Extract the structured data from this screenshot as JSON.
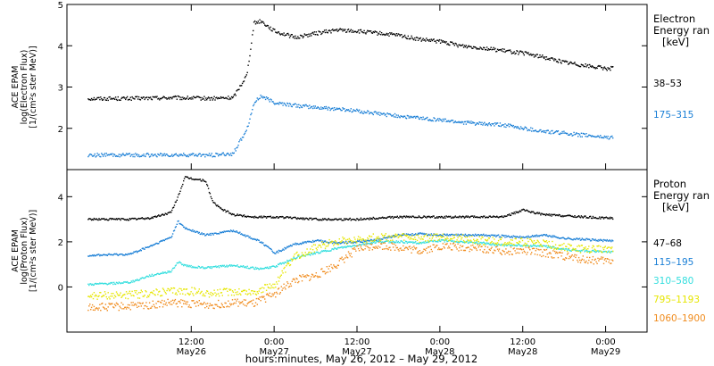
{
  "chart_data": [
    {
      "type": "scatter",
      "panel": "electron",
      "ylabel": [
        "ACE EPAM",
        "log(Electron Flux)",
        "[1/(cm²s ster MeV)]"
      ],
      "legend_title": [
        "Electron",
        "Energy ran",
        "[keV]"
      ],
      "ylim": [
        1,
        5
      ],
      "yticks": [
        2,
        3,
        4,
        5
      ],
      "ytick_labels": [
        "2",
        "3",
        "4",
        "5"
      ],
      "series": [
        {
          "name": "38–53",
          "color": "#000000",
          "x": [
            -3,
            3,
            9,
            15,
            18,
            20,
            21,
            22,
            24,
            27,
            30,
            33,
            36,
            39,
            42,
            45,
            48,
            51,
            54,
            57,
            60,
            63,
            66,
            69,
            72,
            73
          ],
          "y": [
            2.72,
            2.72,
            2.74,
            2.72,
            2.74,
            3.3,
            4.55,
            4.6,
            4.35,
            4.2,
            4.3,
            4.38,
            4.35,
            4.3,
            4.25,
            4.15,
            4.1,
            4.0,
            3.95,
            3.88,
            3.82,
            3.72,
            3.6,
            3.52,
            3.45,
            3.45
          ]
        },
        {
          "name": "175–315",
          "color": "#1a7fd6",
          "x": [
            -3,
            3,
            9,
            15,
            18,
            20,
            21,
            22,
            24,
            27,
            30,
            33,
            36,
            39,
            42,
            45,
            48,
            51,
            54,
            57,
            60,
            63,
            66,
            69,
            72,
            73
          ],
          "y": [
            1.35,
            1.35,
            1.35,
            1.35,
            1.38,
            2.0,
            2.6,
            2.78,
            2.62,
            2.55,
            2.5,
            2.47,
            2.42,
            2.35,
            2.3,
            2.25,
            2.2,
            2.15,
            2.1,
            2.08,
            2.0,
            1.92,
            1.88,
            1.83,
            1.78,
            1.78
          ]
        }
      ]
    },
    {
      "type": "scatter",
      "panel": "proton",
      "ylabel": [
        "ACE EPAM",
        "log(Proton Flux)",
        "[1/(cm²s ster MeV)]"
      ],
      "legend_title": [
        "Proton",
        "Energy ran",
        "[keV]"
      ],
      "ylim": [
        -2,
        5.2
      ],
      "yticks": [
        0,
        2,
        4
      ],
      "ytick_labels": [
        "0",
        "2",
        "4"
      ],
      "series": [
        {
          "name": "47–68",
          "color": "#000000",
          "x": [
            -3,
            3,
            6,
            9,
            10,
            11,
            12,
            14,
            15,
            16,
            18,
            21,
            24,
            30,
            36,
            42,
            48,
            54,
            57,
            60,
            63,
            66,
            69,
            72,
            73
          ],
          "y": [
            3.0,
            3.0,
            3.05,
            3.3,
            4.0,
            4.85,
            4.8,
            4.7,
            3.8,
            3.5,
            3.2,
            3.1,
            3.1,
            3.0,
            3.0,
            3.1,
            3.1,
            3.1,
            3.1,
            3.4,
            3.2,
            3.15,
            3.1,
            3.05,
            3.05
          ]
        },
        {
          "name": "115–195",
          "color": "#1a7fd6",
          "x": [
            -3,
            3,
            6,
            9,
            10,
            11,
            12,
            14,
            18,
            22,
            24,
            27,
            30,
            33,
            36,
            39,
            42,
            45,
            48,
            51,
            54,
            57,
            60,
            63,
            66,
            69,
            72,
            73
          ],
          "y": [
            1.4,
            1.45,
            1.8,
            2.2,
            2.9,
            2.6,
            2.5,
            2.3,
            2.5,
            2.0,
            1.5,
            1.9,
            2.05,
            1.95,
            2.0,
            2.1,
            2.3,
            2.35,
            2.3,
            2.3,
            2.3,
            2.25,
            2.2,
            2.3,
            2.15,
            2.1,
            2.05,
            2.05
          ]
        },
        {
          "name": "310–580",
          "color": "#33dede",
          "x": [
            -3,
            3,
            6,
            9,
            10,
            11,
            12,
            14,
            18,
            22,
            24,
            27,
            30,
            33,
            36,
            39,
            42,
            45,
            48,
            51,
            54,
            57,
            60,
            63,
            66,
            69,
            72,
            73
          ],
          "y": [
            0.1,
            0.2,
            0.5,
            0.7,
            1.1,
            0.95,
            0.9,
            0.85,
            0.95,
            0.8,
            0.9,
            1.3,
            1.5,
            1.7,
            1.85,
            2.0,
            2.0,
            1.95,
            2.05,
            2.0,
            1.95,
            1.85,
            1.85,
            1.8,
            1.65,
            1.6,
            1.55,
            1.55
          ]
        },
        {
          "name": "795–1193",
          "color": "#e6e600",
          "x": [
            -3,
            3,
            6,
            9,
            12,
            15,
            18,
            21,
            24,
            27,
            30,
            33,
            36,
            39,
            42,
            45,
            48,
            51,
            54,
            57,
            60,
            63,
            66,
            69,
            72,
            73
          ],
          "y": [
            -0.4,
            -0.35,
            -0.3,
            -0.2,
            -0.2,
            -0.3,
            -0.2,
            -0.25,
            0.1,
            1.35,
            1.75,
            2.05,
            2.1,
            2.2,
            2.2,
            2.15,
            2.2,
            2.15,
            2.05,
            2.0,
            2.0,
            1.9,
            1.75,
            1.65,
            1.7,
            1.7
          ]
        },
        {
          "name": "1060–1900",
          "color": "#f08c1e",
          "x": [
            -3,
            3,
            6,
            9,
            12,
            15,
            18,
            21,
            24,
            27,
            30,
            33,
            36,
            39,
            42,
            45,
            48,
            51,
            54,
            57,
            60,
            63,
            66,
            69,
            72,
            73
          ],
          "y": [
            -0.9,
            -0.85,
            -0.8,
            -0.7,
            -0.75,
            -0.8,
            -0.7,
            -0.75,
            -0.3,
            0.3,
            0.5,
            1.0,
            1.7,
            1.85,
            1.75,
            1.6,
            1.8,
            1.75,
            1.7,
            1.6,
            1.6,
            1.5,
            1.35,
            1.2,
            1.15,
            1.15
          ]
        }
      ]
    }
  ],
  "x_axis": {
    "label": "hours:minutes, May 26, 2012 – May 29, 2012",
    "range_hours": [
      -6,
      78
    ],
    "ticks": [
      {
        "hours": 12,
        "time": "12:00",
        "date": "May26"
      },
      {
        "hours": 24,
        "time": "0:00",
        "date": "May27"
      },
      {
        "hours": 36,
        "time": "12:00",
        "date": "May27"
      },
      {
        "hours": 48,
        "time": "0:00",
        "date": "May28"
      },
      {
        "hours": 60,
        "time": "12:00",
        "date": "May28"
      },
      {
        "hours": 72,
        "time": "0:00",
        "date": "May29"
      }
    ]
  }
}
